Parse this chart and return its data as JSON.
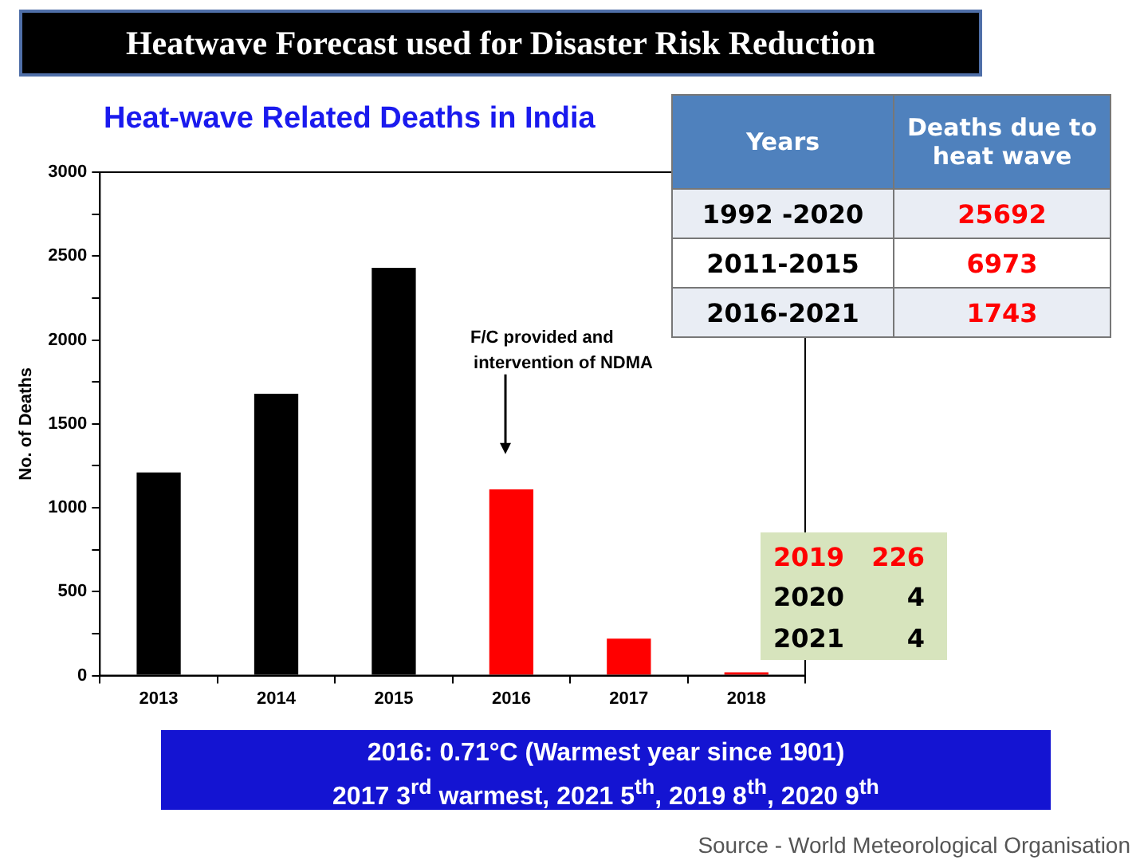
{
  "chart_data": {
    "type": "bar",
    "title": "Heatwave Forecast used for Disaster Risk Reduction",
    "subtitle": "Heat-wave Related Deaths in India",
    "ylabel": "No. of Deaths",
    "categories": [
      "2013",
      "2014",
      "2015",
      "2016",
      "2017",
      "2018"
    ],
    "values": [
      1210,
      1680,
      2430,
      1110,
      220,
      20
    ],
    "colors": [
      "#000000",
      "#000000",
      "#000000",
      "#ff0000",
      "#ff0000",
      "#ff0000"
    ],
    "ylim": [
      0,
      3000
    ],
    "yticks": [
      0,
      {
        "value": 250,
        "label": null
      },
      500,
      {
        "value": 750,
        "label": null
      },
      1000,
      {
        "value": 1250,
        "label": null
      },
      1500,
      {
        "value": 1750,
        "label": null
      },
      2000,
      {
        "value": 2250,
        "label": null
      },
      2500,
      {
        "value": 2750,
        "label": null
      },
      3000
    ],
    "grid": false,
    "legend": false,
    "annotations": [
      "F/C provided and intervention of NDMA",
      "Years",
      "Deaths due to heat wave",
      "1992 -2020",
      "25692",
      "2011-2015",
      "6973",
      "2016-2021",
      "1743",
      "2019",
      "226",
      "2020",
      "4",
      "2021",
      "4",
      "2016: 0.71°C  (Warmest year since 1901)",
      "2017 3$^{rd}$ warmest, 2021 5$^{th}$, 2019 8$^{th}$, 2020 9$^{th}$",
      "Source - World Meteorological Organisation"
    ]
  }
}
